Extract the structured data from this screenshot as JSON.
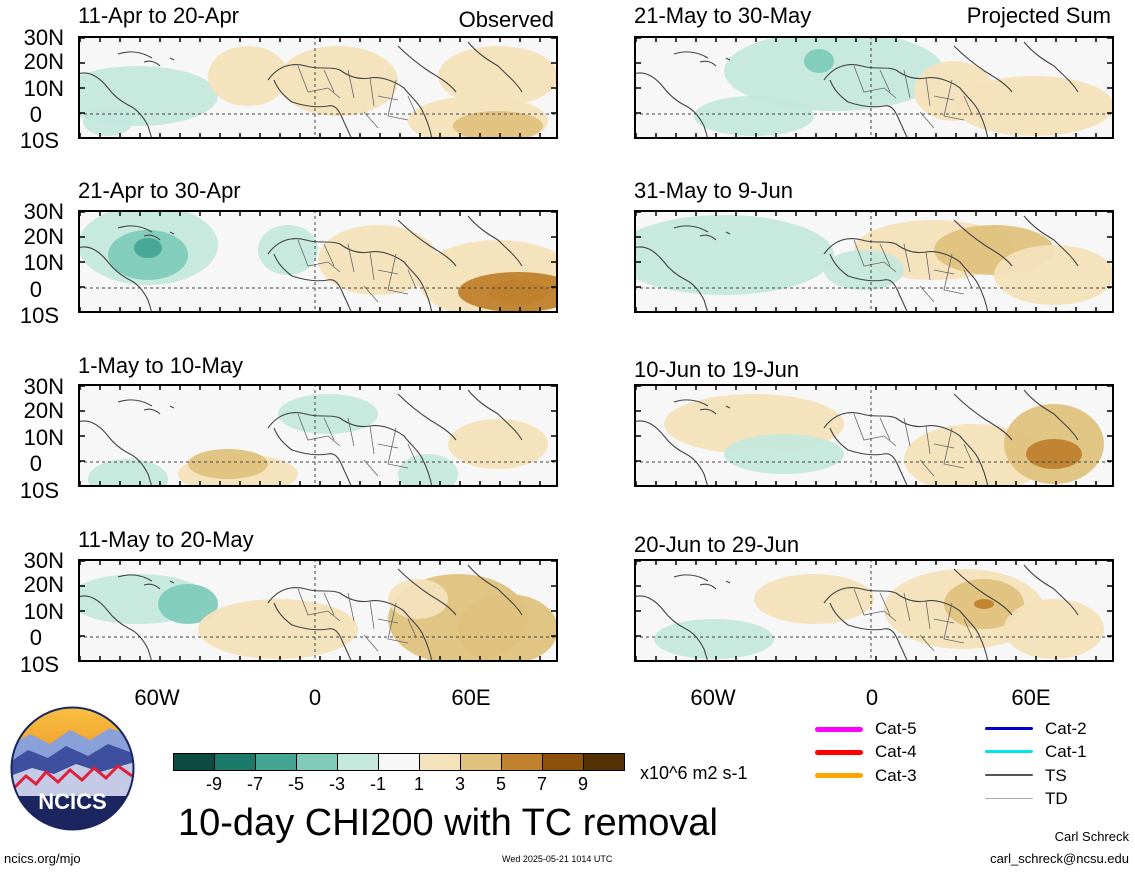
{
  "left_header": "Observed",
  "right_header": "Projected Sum",
  "panels": [
    {
      "title": "11-Apr to 20-Apr"
    },
    {
      "title": "21-Apr to 30-Apr"
    },
    {
      "title": "1-May to 10-May"
    },
    {
      "title": "11-May to 20-May"
    },
    {
      "title": "21-May to 30-May"
    },
    {
      "title": "31-May to 9-Jun"
    },
    {
      "title": "10-Jun to 19-Jun"
    },
    {
      "title": "20-Jun to 29-Jun"
    }
  ],
  "lat_labels": [
    "30N",
    "20N",
    "10N",
    "0",
    "10S"
  ],
  "lon_labels": [
    "60W",
    "0",
    "60E"
  ],
  "colorbar": {
    "colors": [
      "#0d4a40",
      "#1b7a6a",
      "#45a595",
      "#7fcbb9",
      "#c4e8dc",
      "#f7f7f7",
      "#f4e2bb",
      "#dfc27d",
      "#bf812d",
      "#8c510a",
      "#543005"
    ],
    "labels": [
      "-9",
      "-7",
      "-5",
      "-3",
      "-1",
      "1",
      "3",
      "5",
      "7",
      "9"
    ],
    "units": "x10^6 m2 s-1"
  },
  "legend": [
    {
      "label": "Cat-5",
      "color": "#ff00ff"
    },
    {
      "label": "Cat-4",
      "color": "#ff0000"
    },
    {
      "label": "Cat-3",
      "color": "#ffa500"
    },
    {
      "label": "Cat-2",
      "color": "#0000cc"
    },
    {
      "label": "Cat-1",
      "color": "#00e5ee"
    },
    {
      "label": "TS",
      "color": "#555555"
    },
    {
      "label": "TD",
      "color": "#aaaaaa"
    }
  ],
  "main_title": "10-day CHI200 with TC removal",
  "logo_text": "NCICS",
  "footer": {
    "left": "ncics.org/mjo",
    "center": "Wed 2025-05-21 1014 UTC",
    "author": "Carl Schreck",
    "email": "carl_schreck@ncsu.edu"
  }
}
